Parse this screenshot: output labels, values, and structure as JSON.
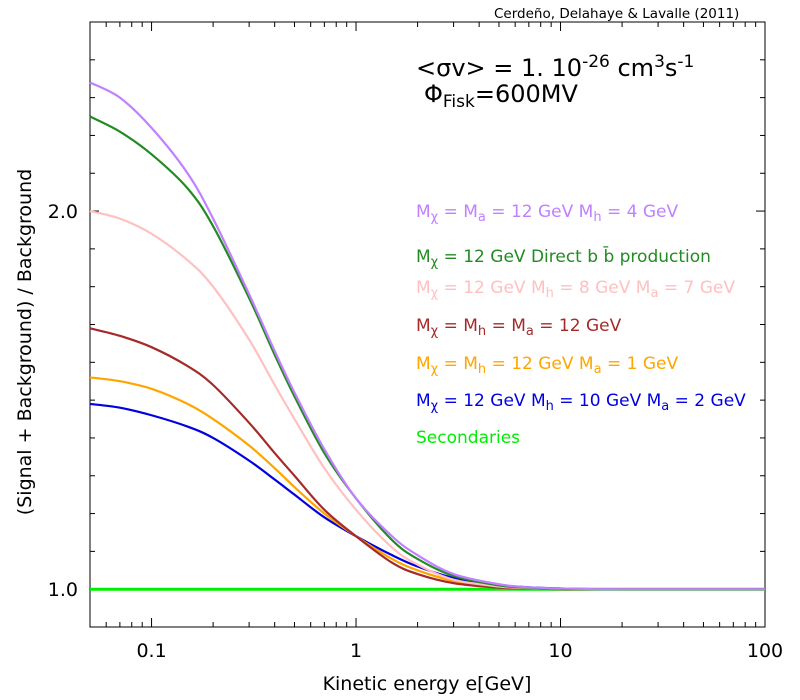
{
  "credit": "Cerdeño, Delahaye & Lavalle (2011)",
  "annotation": {
    "sigma_prefix": "<σv> = 1. 10",
    "sigma_exp": "-26",
    "sigma_unit": " cm",
    "sigma_unit_exp1": "3",
    "sigma_unit2": "s",
    "sigma_unit_exp2": "-1",
    "phi_symbol": "Φ",
    "phi_sub": "Fisk",
    "phi_value": "=600MV"
  },
  "legend": [
    {
      "color": "#c080ff",
      "parts": [
        {
          "t": "M"
        },
        {
          "s": "χ"
        },
        {
          "t": " = M"
        },
        {
          "s": "a"
        },
        {
          "t": " = 12 GeV  M"
        },
        {
          "s": "h"
        },
        {
          "t": " = 4 GeV"
        }
      ]
    },
    {
      "color": "#228b22",
      "parts": [
        {
          "t": "M"
        },
        {
          "s": "χ"
        },
        {
          "t": " = 12 GeV Direct b b̄ production"
        }
      ]
    },
    {
      "color": "#ffc0c0",
      "parts": [
        {
          "t": "M"
        },
        {
          "s": "χ"
        },
        {
          "t": " = 12 GeV M"
        },
        {
          "s": "h"
        },
        {
          "t": " = 8 GeV  M"
        },
        {
          "s": "a"
        },
        {
          "t": " = 7 GeV"
        }
      ]
    },
    {
      "color": "#a52a2a",
      "parts": [
        {
          "t": "M"
        },
        {
          "s": "χ"
        },
        {
          "t": " = M"
        },
        {
          "s": "h"
        },
        {
          "t": " = M"
        },
        {
          "s": "a"
        },
        {
          "t": " = 12 GeV"
        }
      ]
    },
    {
      "color": "#ffa500",
      "parts": [
        {
          "t": "M"
        },
        {
          "s": "χ"
        },
        {
          "t": " = M"
        },
        {
          "s": "h"
        },
        {
          "t": " = 12 GeV  M"
        },
        {
          "s": "a"
        },
        {
          "t": " = 1 GeV"
        }
      ]
    },
    {
      "color": "#0000e0",
      "parts": [
        {
          "t": "M"
        },
        {
          "s": "χ"
        },
        {
          "t": " = 12 GeV M"
        },
        {
          "s": "h"
        },
        {
          "t": " = 10 GeV  M"
        },
        {
          "s": "a"
        },
        {
          "t": " = 2 GeV"
        }
      ]
    },
    {
      "color": "#00ee00",
      "parts": [
        {
          "t": "Secondaries"
        }
      ]
    }
  ],
  "chart_data": {
    "type": "line",
    "title": "",
    "xlabel": "Kinetic energy e[GeV]",
    "ylabel": "(Signal + Background) / Background",
    "xscale": "log",
    "xlim": [
      0.05,
      100
    ],
    "ylim": [
      0.9,
      2.5
    ],
    "x_ticks": [
      0.1,
      1,
      10,
      100
    ],
    "x_tick_labels": [
      "0.1",
      "1",
      "10",
      "100"
    ],
    "y_ticks": [
      1.0,
      2.0
    ],
    "y_tick_labels": [
      "1.0",
      "2.0"
    ],
    "x": [
      0.05,
      0.07,
      0.1,
      0.15,
      0.2,
      0.3,
      0.4,
      0.5,
      0.7,
      1,
      1.5,
      2,
      3,
      5,
      7,
      10,
      15,
      20,
      50,
      100
    ],
    "series": [
      {
        "name": "Mχ = Ma = 12 GeV  Mh = 4 GeV",
        "color": "#c080ff",
        "values": [
          2.34,
          2.3,
          2.22,
          2.1,
          1.98,
          1.78,
          1.63,
          1.52,
          1.37,
          1.24,
          1.14,
          1.09,
          1.04,
          1.013,
          1.005,
          1.002,
          1.0,
          1.0,
          1.0,
          1.0
        ]
      },
      {
        "name": "Mχ = 12 GeV Direct b b̄ production",
        "color": "#228b22",
        "values": [
          2.25,
          2.21,
          2.15,
          2.06,
          1.96,
          1.77,
          1.62,
          1.51,
          1.36,
          1.24,
          1.13,
          1.08,
          1.035,
          1.01,
          1.004,
          1.001,
          1.0,
          1.0,
          1.0,
          1.0
        ]
      },
      {
        "name": "Mχ = 12 GeV Mh = 8 GeV  Ma = 7 GeV",
        "color": "#ffc0c0",
        "values": [
          2.0,
          1.98,
          1.94,
          1.87,
          1.8,
          1.66,
          1.54,
          1.45,
          1.32,
          1.21,
          1.11,
          1.065,
          1.025,
          1.007,
          1.003,
          1.001,
          1.0,
          1.0,
          1.0,
          1.0
        ]
      },
      {
        "name": "Mχ = Mh = Ma = 12 GeV",
        "color": "#a52a2a",
        "values": [
          1.69,
          1.67,
          1.64,
          1.59,
          1.54,
          1.44,
          1.36,
          1.3,
          1.21,
          1.14,
          1.07,
          1.04,
          1.016,
          1.004,
          1.002,
          1.0,
          1.0,
          1.0,
          1.0,
          1.0
        ]
      },
      {
        "name": "Mχ = Mh = 12 GeV  Ma = 1 GeV",
        "color": "#ffa500",
        "values": [
          1.56,
          1.55,
          1.53,
          1.49,
          1.45,
          1.38,
          1.32,
          1.27,
          1.2,
          1.14,
          1.08,
          1.05,
          1.022,
          1.007,
          1.003,
          1.001,
          1.0,
          1.0,
          1.0,
          1.0
        ]
      },
      {
        "name": "Mχ = 12 GeV Mh = 10 GeV  Ma = 2 GeV",
        "color": "#0000e0",
        "values": [
          1.49,
          1.48,
          1.46,
          1.43,
          1.4,
          1.34,
          1.29,
          1.25,
          1.19,
          1.14,
          1.09,
          1.06,
          1.03,
          1.011,
          1.005,
          1.002,
          1.0,
          1.0,
          1.0,
          1.0
        ]
      },
      {
        "name": "Secondaries",
        "color": "#00ee00",
        "values": [
          1.0,
          1.0,
          1.0,
          1.0,
          1.0,
          1.0,
          1.0,
          1.0,
          1.0,
          1.0,
          1.0,
          1.0,
          1.0,
          1.0,
          1.0,
          1.0,
          1.0,
          1.0,
          1.0,
          1.0
        ]
      }
    ]
  }
}
